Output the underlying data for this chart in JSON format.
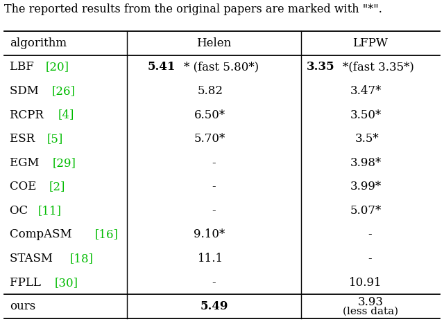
{
  "header_text": "The reported results from the original papers are marked with \"*\".",
  "col_headers": [
    "algorithm",
    "Helen",
    "LFPW"
  ],
  "rows": [
    {
      "alg_name": "LBF ",
      "alg_cite": "[20]",
      "helen": [
        {
          "t": "5.41",
          "b": true
        },
        {
          "t": "* (fast 5.80*)",
          "b": false
        }
      ],
      "lfpw": [
        {
          "t": "3.35",
          "b": true
        },
        {
          "t": "*(fast 3.35*)",
          "b": false
        }
      ]
    },
    {
      "alg_name": "SDM ",
      "alg_cite": "[26]",
      "helen": [
        {
          "t": "5.82",
          "b": false
        }
      ],
      "lfpw": [
        {
          "t": "3.47*",
          "b": false
        }
      ]
    },
    {
      "alg_name": "RCPR ",
      "alg_cite": "[4]",
      "helen": [
        {
          "t": "6.50*",
          "b": false
        }
      ],
      "lfpw": [
        {
          "t": "3.50*",
          "b": false
        }
      ]
    },
    {
      "alg_name": "ESR ",
      "alg_cite": "[5]",
      "helen": [
        {
          "t": "5.70*",
          "b": false
        }
      ],
      "lfpw": [
        {
          "t": "3.5*",
          "b": false
        }
      ]
    },
    {
      "alg_name": "EGM ",
      "alg_cite": "[29]",
      "helen": [
        {
          "t": "-",
          "b": false
        }
      ],
      "lfpw": [
        {
          "t": "3.98*",
          "b": false
        }
      ]
    },
    {
      "alg_name": "COE ",
      "alg_cite": "[2]",
      "helen": [
        {
          "t": "-",
          "b": false
        }
      ],
      "lfpw": [
        {
          "t": "3.99*",
          "b": false
        }
      ]
    },
    {
      "alg_name": "OC ",
      "alg_cite": "[11]",
      "helen": [
        {
          "t": "-",
          "b": false
        }
      ],
      "lfpw": [
        {
          "t": "5.07*",
          "b": false
        }
      ]
    },
    {
      "alg_name": "CompASM ",
      "alg_cite": "[16]",
      "helen": [
        {
          "t": "9.10*",
          "b": false
        }
      ],
      "lfpw": [
        {
          "t": "-",
          "b": false
        }
      ]
    },
    {
      "alg_name": "STASM ",
      "alg_cite": "[18]",
      "helen": [
        {
          "t": "11.1",
          "b": false
        }
      ],
      "lfpw": [
        {
          "t": "-",
          "b": false
        }
      ]
    },
    {
      "alg_name": "FPLL ",
      "alg_cite": "[30]",
      "helen": [
        {
          "t": "-",
          "b": false
        }
      ],
      "lfpw": [
        {
          "t": "10.91",
          "b": false
        }
      ]
    }
  ],
  "last_row": {
    "alg_name": "ours",
    "alg_cite": "",
    "helen": [
      {
        "t": "5.49",
        "b": true
      }
    ],
    "lfpw": [
      {
        "t": "3.93",
        "b": false
      },
      {
        "t": "\n(less data)",
        "b": false
      }
    ]
  },
  "cite_color": "#00bb00",
  "font_size": 12,
  "font_family": "DejaVu Serif"
}
